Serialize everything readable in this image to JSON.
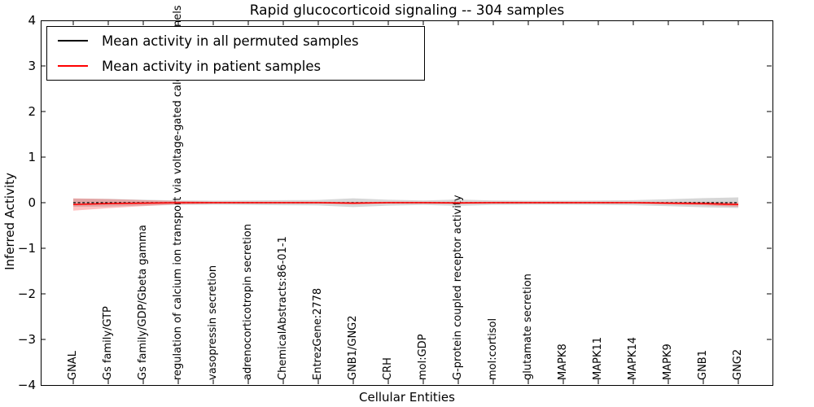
{
  "title": "Rapid glucocorticoid signaling -- 304 samples",
  "axes": {
    "x_label": "Cellular Entities",
    "y_label": "Inferred Activity",
    "y_ticks": [
      "4",
      "3",
      "2",
      "1",
      "0",
      "−1",
      "−2",
      "−3",
      "−4"
    ]
  },
  "legend": {
    "items": [
      {
        "label": "Mean activity in all permuted samples",
        "color": "#000000"
      },
      {
        "label": "Mean activity in patient samples",
        "color": "#ff0000"
      }
    ]
  },
  "colors": {
    "frame": "#000000",
    "permuted_line": "#000000",
    "patient_line": "#ff0000",
    "permuted_band": "rgba(120,120,120,0.30)",
    "patient_band": "rgba(255,40,40,0.28)"
  },
  "chart_data": {
    "type": "line",
    "title": "Rapid glucocorticoid signaling -- 304 samples",
    "xlabel": "Cellular Entities",
    "ylabel": "Inferred Activity",
    "ylim": [
      -4,
      4
    ],
    "yticks": [
      4,
      3,
      2,
      1,
      0,
      -1,
      -2,
      -3,
      -4
    ],
    "grid": false,
    "legend_position": "upper left",
    "categories": [
      "GNAL",
      "Gs family/GTP",
      "Gs family/GDP/Gbeta gamma",
      "regulation of calcium ion transport via voltage-gated calcium channels",
      "vasopressin secretion",
      "adrenocorticotropin secretion",
      "ChemicalAbstracts:86-01-1",
      "EntrezGene:2778",
      "GNB1/GNG2",
      "CRH",
      "mol:GDP",
      "G-protein coupled receptor activity",
      "mol:cortisol",
      "glutamate secretion",
      "MAPK8",
      "MAPK11",
      "MAPK14",
      "MAPK9",
      "GNB1",
      "GNG2"
    ],
    "series": [
      {
        "name": "Mean activity in all permuted samples",
        "style": "dashed",
        "values": [
          0,
          0,
          0,
          0,
          0,
          0,
          0,
          0,
          0,
          0,
          0,
          0,
          0,
          0,
          0,
          0,
          0,
          0,
          0,
          0
        ]
      },
      {
        "name": "Mean activity in patient samples",
        "style": "solid",
        "values": [
          -0.04,
          -0.02,
          -0.01,
          0,
          0,
          0,
          0,
          0,
          -0.01,
          0,
          0,
          -0.005,
          0,
          0,
          0,
          0,
          0,
          -0.01,
          -0.02,
          -0.04
        ]
      }
    ],
    "bands": [
      {
        "name": "permuted std",
        "center_series": 0,
        "half_widths": [
          0.09,
          0.085,
          0.065,
          0.05,
          0.045,
          0.05,
          0.055,
          0.06,
          0.095,
          0.065,
          0.05,
          0.07,
          0.05,
          0.045,
          0.045,
          0.05,
          0.055,
          0.075,
          0.1,
          0.115
        ]
      },
      {
        "name": "patient std",
        "center_series": 1,
        "half_widths": [
          0.135,
          0.1,
          0.065,
          0.035,
          0.02,
          0.02,
          0.02,
          0.02,
          0.025,
          0.02,
          0.02,
          0.02,
          0.02,
          0.02,
          0.02,
          0.02,
          0.02,
          0.025,
          0.035,
          0.05
        ]
      }
    ]
  }
}
